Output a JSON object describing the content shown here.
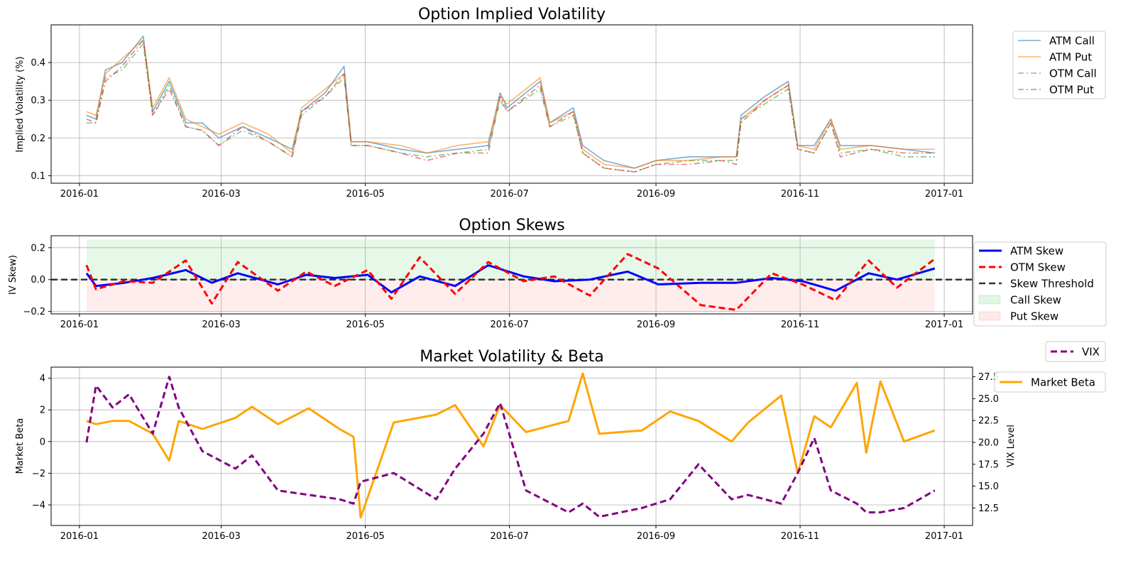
{
  "chart_data": [
    {
      "type": "line",
      "title": "Option Implied Volatility",
      "ylabel": "Implied Volatility (%)",
      "xlabel": "",
      "x_ticks": [
        "2016-01",
        "2016-03",
        "2016-05",
        "2016-07",
        "2016-09",
        "2016-11",
        "2017-01"
      ],
      "x_range": [
        "2015-12-20",
        "2017-01-13"
      ],
      "ylim": [
        0.08,
        0.5
      ],
      "y_ticks": [
        0.1,
        0.2,
        0.3,
        0.4
      ],
      "y_tick_labels": [
        "0.1",
        "0.2",
        "0.3",
        "0.4"
      ],
      "grid": true,
      "legend": "outside-top-right",
      "x": [
        "2016-01-04",
        "2016-01-08",
        "2016-01-12",
        "2016-01-19",
        "2016-01-28",
        "2016-02-01",
        "2016-02-08",
        "2016-02-15",
        "2016-02-22",
        "2016-02-29",
        "2016-03-10",
        "2016-03-21",
        "2016-03-31",
        "2016-04-04",
        "2016-04-14",
        "2016-04-22",
        "2016-04-25",
        "2016-05-02",
        "2016-05-16",
        "2016-05-27",
        "2016-06-09",
        "2016-06-22",
        "2016-06-27",
        "2016-06-30",
        "2016-07-14",
        "2016-07-18",
        "2016-07-28",
        "2016-08-01",
        "2016-08-10",
        "2016-08-23",
        "2016-09-01",
        "2016-09-15",
        "2016-09-29",
        "2016-10-05",
        "2016-10-07",
        "2016-10-17",
        "2016-10-27",
        "2016-10-31",
        "2016-11-07",
        "2016-11-14",
        "2016-11-18",
        "2016-12-01",
        "2016-12-15",
        "2016-12-28"
      ],
      "series": [
        {
          "name": "ATM Call",
          "color": "#1f77b4",
          "dash": "solid",
          "values": [
            0.26,
            0.25,
            0.38,
            0.4,
            0.47,
            0.27,
            0.35,
            0.24,
            0.24,
            0.2,
            0.23,
            0.2,
            0.17,
            0.27,
            0.32,
            0.39,
            0.19,
            0.19,
            0.17,
            0.16,
            0.17,
            0.18,
            0.32,
            0.28,
            0.35,
            0.24,
            0.28,
            0.18,
            0.14,
            0.12,
            0.14,
            0.15,
            0.15,
            0.15,
            0.26,
            0.31,
            0.35,
            0.18,
            0.18,
            0.25,
            0.18,
            0.18,
            0.17,
            0.16
          ]
        },
        {
          "name": "ATM Put",
          "color": "#ff7f0e",
          "dash": "solid",
          "values": [
            0.27,
            0.26,
            0.37,
            0.41,
            0.46,
            0.28,
            0.36,
            0.25,
            0.23,
            0.21,
            0.24,
            0.21,
            0.16,
            0.28,
            0.33,
            0.37,
            0.19,
            0.19,
            0.18,
            0.16,
            0.18,
            0.19,
            0.31,
            0.29,
            0.36,
            0.24,
            0.27,
            0.17,
            0.13,
            0.12,
            0.14,
            0.14,
            0.15,
            0.15,
            0.25,
            0.3,
            0.34,
            0.18,
            0.17,
            0.25,
            0.17,
            0.18,
            0.17,
            0.17
          ]
        },
        {
          "name": "OTM Call",
          "color": "#2ca02c",
          "dash": "dashdot",
          "values": [
            0.24,
            0.24,
            0.36,
            0.38,
            0.45,
            0.26,
            0.34,
            0.23,
            0.22,
            0.18,
            0.22,
            0.19,
            0.15,
            0.26,
            0.31,
            0.36,
            0.18,
            0.18,
            0.16,
            0.15,
            0.16,
            0.17,
            0.3,
            0.27,
            0.33,
            0.23,
            0.26,
            0.16,
            0.12,
            0.11,
            0.13,
            0.14,
            0.14,
            0.14,
            0.25,
            0.29,
            0.33,
            0.17,
            0.16,
            0.24,
            0.16,
            0.17,
            0.15,
            0.15
          ]
        },
        {
          "name": "OTM Put",
          "color": "#d62728",
          "dash": "dashdot",
          "values": [
            0.25,
            0.24,
            0.35,
            0.39,
            0.46,
            0.26,
            0.33,
            0.23,
            0.22,
            0.18,
            0.23,
            0.19,
            0.15,
            0.27,
            0.31,
            0.37,
            0.18,
            0.18,
            0.16,
            0.14,
            0.16,
            0.16,
            0.31,
            0.27,
            0.34,
            0.23,
            0.27,
            0.16,
            0.12,
            0.11,
            0.13,
            0.13,
            0.14,
            0.13,
            0.24,
            0.3,
            0.34,
            0.17,
            0.16,
            0.24,
            0.15,
            0.17,
            0.16,
            0.16
          ]
        }
      ]
    },
    {
      "type": "line",
      "title": "Option Skews",
      "ylabel": "IV Skew)",
      "xlabel": "",
      "x_ticks": [
        "2016-01",
        "2016-03",
        "2016-05",
        "2016-07",
        "2016-09",
        "2016-11",
        "2017-01"
      ],
      "x_range": [
        "2015-12-20",
        "2017-01-13"
      ],
      "ylim": [
        -0.215,
        0.275
      ],
      "y_ticks": [
        -0.2,
        0.0,
        0.2
      ],
      "y_tick_labels": [
        "−0.2",
        "0.0",
        "0.2"
      ],
      "grid": true,
      "legend": "outside-right",
      "shaded_regions": [
        {
          "name": "Call Skew",
          "color": "#2ecc40",
          "from": 0,
          "to": 0.25
        },
        {
          "name": "Put Skew",
          "color": "#ff6b6b",
          "from": -0.2,
          "to": 0
        }
      ],
      "threshold": {
        "name": "Skew Threshold",
        "value": 0.0,
        "color": "#333333"
      },
      "x": [
        "2016-01-04",
        "2016-01-08",
        "2016-01-20",
        "2016-02-01",
        "2016-02-15",
        "2016-02-26",
        "2016-03-08",
        "2016-03-25",
        "2016-04-06",
        "2016-04-18",
        "2016-05-02",
        "2016-05-12",
        "2016-05-24",
        "2016-06-08",
        "2016-06-22",
        "2016-07-07",
        "2016-07-20",
        "2016-08-04",
        "2016-08-20",
        "2016-09-02",
        "2016-09-20",
        "2016-10-05",
        "2016-10-20",
        "2016-11-02",
        "2016-11-16",
        "2016-11-30",
        "2016-12-12",
        "2016-12-28"
      ],
      "series": [
        {
          "name": "ATM Skew",
          "color": "#0000ff",
          "dash": "solid",
          "values": [
            0.04,
            -0.04,
            -0.02,
            0.01,
            0.06,
            -0.02,
            0.04,
            -0.03,
            0.03,
            0.01,
            0.03,
            -0.08,
            0.02,
            -0.04,
            0.09,
            0.02,
            -0.01,
            0.0,
            0.05,
            -0.03,
            -0.02,
            -0.02,
            0.01,
            -0.01,
            -0.07,
            0.04,
            0.0,
            0.07
          ]
        },
        {
          "name": "OTM Skew",
          "color": "#ff0000",
          "dash": "dashed",
          "values": [
            0.09,
            -0.06,
            -0.01,
            -0.02,
            0.12,
            -0.15,
            0.11,
            -0.07,
            0.05,
            -0.04,
            0.06,
            -0.12,
            0.14,
            -0.09,
            0.11,
            -0.01,
            0.02,
            -0.1,
            0.16,
            0.07,
            -0.16,
            -0.19,
            0.04,
            -0.03,
            -0.13,
            0.12,
            -0.05,
            0.13
          ]
        }
      ]
    },
    {
      "type": "line",
      "title": "Market Volatility & Beta",
      "ylabel": "Market Beta",
      "ylabel_right": "VIX Level",
      "xlabel": "",
      "x_ticks": [
        "2016-01",
        "2016-03",
        "2016-05",
        "2016-07",
        "2016-09",
        "2016-11",
        "2017-01"
      ],
      "x_range": [
        "2015-12-20",
        "2017-01-13"
      ],
      "ylim": [
        -5.3,
        4.7
      ],
      "ylim_right": [
        10.5,
        28.6
      ],
      "y_ticks": [
        -4,
        -2,
        0,
        2,
        4
      ],
      "y_tick_labels": [
        "−4",
        "−2",
        "0",
        "2",
        "4"
      ],
      "y_ticks_right": [
        12.5,
        15.0,
        17.5,
        20.0,
        22.5,
        25.0,
        27.5
      ],
      "y_tick_labels_right": [
        "12.5",
        "15.0",
        "17.5",
        "20.0",
        "22.5",
        "25.0",
        "27.5"
      ],
      "grid": true,
      "legend": "outside-right",
      "x": [
        "2016-01-04",
        "2016-01-08",
        "2016-01-15",
        "2016-01-22",
        "2016-02-01",
        "2016-02-08",
        "2016-02-12",
        "2016-02-22",
        "2016-03-07",
        "2016-03-14",
        "2016-03-25",
        "2016-04-07",
        "2016-04-20",
        "2016-04-26",
        "2016-04-29",
        "2016-05-13",
        "2016-05-31",
        "2016-06-08",
        "2016-06-20",
        "2016-06-27",
        "2016-07-08",
        "2016-07-26",
        "2016-08-01",
        "2016-08-08",
        "2016-08-26",
        "2016-09-07",
        "2016-09-19",
        "2016-10-03",
        "2016-10-10",
        "2016-10-24",
        "2016-10-31",
        "2016-11-07",
        "2016-11-14",
        "2016-11-25",
        "2016-11-29",
        "2016-12-05",
        "2016-12-15",
        "2016-12-28"
      ],
      "series": [
        {
          "name": "Market Beta",
          "axis": "left",
          "color": "#ffa500",
          "dash": "solid",
          "values": [
            1.3,
            1.1,
            1.3,
            1.3,
            0.5,
            -1.2,
            1.3,
            0.8,
            1.5,
            2.2,
            1.1,
            2.1,
            0.8,
            0.3,
            -4.8,
            1.2,
            1.7,
            2.3,
            -0.3,
            2.3,
            0.6,
            1.3,
            4.3,
            0.5,
            0.7,
            1.9,
            1.3,
            0.0,
            1.2,
            2.9,
            -2.0,
            1.6,
            0.9,
            3.7,
            -0.7,
            3.8,
            0.0,
            0.7
          ]
        },
        {
          "name": "VIX",
          "axis": "right",
          "color": "#800080",
          "dash": "dashed",
          "values": [
            20.0,
            26.5,
            24.0,
            25.5,
            21.0,
            27.5,
            24.0,
            19.0,
            17.0,
            18.5,
            14.5,
            14.0,
            13.5,
            13.0,
            15.5,
            16.5,
            13.5,
            17.0,
            21.0,
            24.5,
            14.5,
            12.0,
            13.0,
            11.5,
            12.5,
            13.5,
            17.5,
            13.5,
            14.0,
            13.0,
            16.5,
            20.5,
            14.5,
            13.0,
            12.0,
            12.0,
            12.5,
            14.5
          ]
        }
      ]
    }
  ]
}
